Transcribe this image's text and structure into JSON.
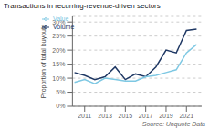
{
  "chart_data": {
    "type": "line",
    "title": "Transactions in recurring-revenue-driven sectors",
    "y_label": "Proportion of total buyouts",
    "annotations": [
      "Source: Unquote Data"
    ],
    "x": [
      2010,
      2011,
      2012,
      2013,
      2014,
      2015,
      2016,
      2017,
      2018,
      2019,
      2020,
      2021,
      2022
    ],
    "series": [
      {
        "name": "Volume",
        "color": "#1f3864",
        "values": [
          12.0,
          11.0,
          9.5,
          10.5,
          14.0,
          9.5,
          11.5,
          10.5,
          14.0,
          20.0,
          19.0,
          27.0,
          27.5
        ]
      },
      {
        "name": "Value",
        "color": "#7ec8e3",
        "values": [
          8.5,
          9.5,
          8.0,
          10.0,
          9.5,
          9.0,
          9.0,
          10.5,
          11.0,
          12.0,
          13.0,
          19.0,
          22.0
        ]
      }
    ],
    "xlim": [
      2009.8,
      2022.5
    ],
    "xticks": [
      2011,
      2013,
      2015,
      2017,
      2019,
      2021
    ],
    "ylim": [
      0,
      32
    ],
    "yticks": [
      {
        "value": 0,
        "label": "0%"
      },
      {
        "value": 5,
        "label": "5%"
      },
      {
        "value": 10,
        "label": "10%"
      },
      {
        "value": 15,
        "label": "15%"
      },
      {
        "value": 20,
        "label": "20%"
      },
      {
        "value": 25,
        "label": "25%"
      },
      {
        "value": 30,
        "label": "30%"
      }
    ],
    "grid": "y",
    "legend": "upper left"
  }
}
